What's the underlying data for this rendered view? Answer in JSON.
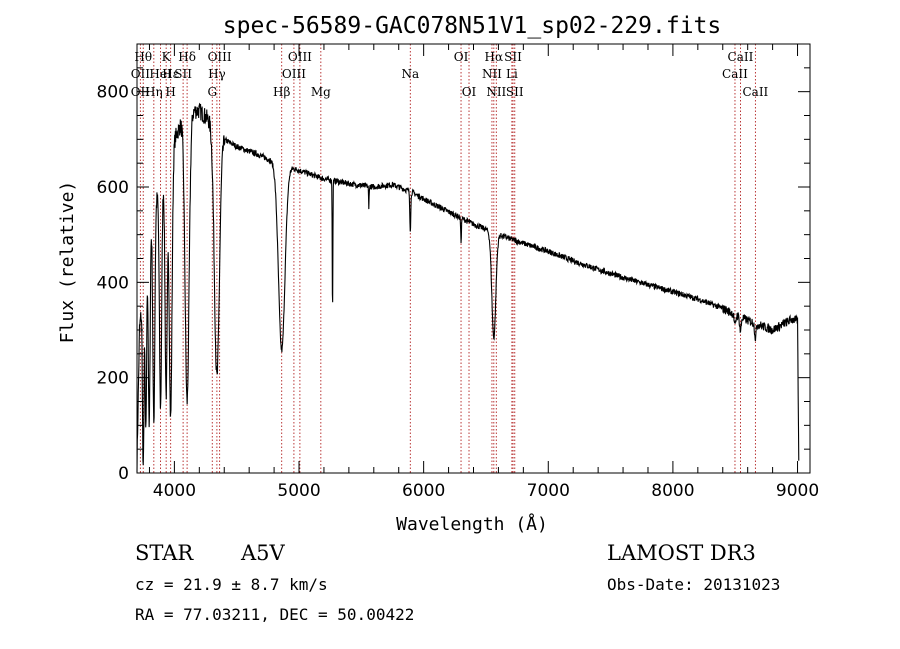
{
  "chart_data": {
    "type": "line",
    "title": "spec-56589-GAC078N51V1_sp02-229.fits",
    "xlabel": "Wavelength (Å)",
    "ylabel": "Flux (relative)",
    "xlim": [
      3700,
      9100
    ],
    "ylim": [
      0,
      900
    ],
    "x_ticks": [
      4000,
      5000,
      6000,
      7000,
      8000,
      9000
    ],
    "x_tick_labels": [
      "4000",
      "5000",
      "6000",
      "7000",
      "8000",
      "9000"
    ],
    "y_ticks": [
      0,
      200,
      400,
      600,
      800
    ],
    "y_tick_labels": [
      "0",
      "200",
      "400",
      "600",
      "800"
    ],
    "x_minor_step": 200,
    "y_minor_step": 50,
    "grid": false,
    "line_color": "#000000",
    "marker_color": "#b22222",
    "continuum": [
      [
        3700,
        20
      ],
      [
        3720,
        300
      ],
      [
        3800,
        520
      ],
      [
        3900,
        620
      ],
      [
        4000,
        700
      ],
      [
        4100,
        760
      ],
      [
        4200,
        760
      ],
      [
        4300,
        735
      ],
      [
        4400,
        700
      ],
      [
        4500,
        685
      ],
      [
        4600,
        675
      ],
      [
        4700,
        665
      ],
      [
        4800,
        652
      ],
      [
        5000,
        635
      ],
      [
        5200,
        617
      ],
      [
        5400,
        607
      ],
      [
        5600,
        600
      ],
      [
        5750,
        605
      ],
      [
        5900,
        590
      ],
      [
        6000,
        575
      ],
      [
        6200,
        548
      ],
      [
        6400,
        522
      ],
      [
        6600,
        500
      ],
      [
        6800,
        482
      ],
      [
        7000,
        465
      ],
      [
        7200,
        445
      ],
      [
        7400,
        427
      ],
      [
        7600,
        410
      ],
      [
        7800,
        395
      ],
      [
        8000,
        380
      ],
      [
        8200,
        365
      ],
      [
        8400,
        345
      ],
      [
        8600,
        320
      ],
      [
        8800,
        300
      ],
      [
        8950,
        322
      ],
      [
        9000,
        320
      ],
      [
        9010,
        20
      ]
    ],
    "absorption_lines": [
      {
        "center": 3750,
        "depth": 380,
        "width": 6
      },
      {
        "center": 3771,
        "depth": 360,
        "width": 6
      },
      {
        "center": 3798,
        "depth": 420,
        "width": 7
      },
      {
        "center": 3835,
        "depth": 450,
        "width": 8
      },
      {
        "center": 3889,
        "depth": 470,
        "width": 9
      },
      {
        "center": 3934,
        "depth": 480,
        "width": 9
      },
      {
        "center": 3970,
        "depth": 560,
        "width": 11
      },
      {
        "center": 4102,
        "depth": 610,
        "width": 16
      },
      {
        "center": 4341,
        "depth": 520,
        "width": 20
      },
      {
        "center": 4861,
        "depth": 390,
        "width": 26
      },
      {
        "center": 5269,
        "depth": 280,
        "width": 2.5
      },
      {
        "center": 5560,
        "depth": 50,
        "width": 2
      },
      {
        "center": 5893,
        "depth": 80,
        "width": 4
      },
      {
        "center": 6300,
        "depth": 50,
        "width": 3
      },
      {
        "center": 6563,
        "depth": 220,
        "width": 16
      },
      {
        "center": 8498,
        "depth": 25,
        "width": 6
      },
      {
        "center": 8542,
        "depth": 30,
        "width": 6
      },
      {
        "center": 8662,
        "depth": 30,
        "width": 6
      }
    ],
    "noise_amplitude": 12,
    "line_markers": [
      {
        "wavelength": 3750,
        "label": "Hθ",
        "row": 1
      },
      {
        "wavelength": 3727,
        "label": "OII",
        "row": 2
      },
      {
        "wavelength": 3727,
        "label": "OII",
        "row": 3
      },
      {
        "wavelength": 3835,
        "label": "Hη",
        "row": 3
      },
      {
        "wavelength": 3889,
        "label": "HeI",
        "row": 2
      },
      {
        "wavelength": 3934,
        "label": "K",
        "row": 1
      },
      {
        "wavelength": 3970,
        "label": "H",
        "row": 3
      },
      {
        "wavelength": 3970,
        "label": "Hε",
        "row": 2
      },
      {
        "wavelength": 4070,
        "label": "SII",
        "row": 2
      },
      {
        "wavelength": 4102,
        "label": "Hδ",
        "row": 1
      },
      {
        "wavelength": 4304,
        "label": "G",
        "row": 3
      },
      {
        "wavelength": 4341,
        "label": "Hγ",
        "row": 2
      },
      {
        "wavelength": 4363,
        "label": "OIII",
        "row": 1
      },
      {
        "wavelength": 4861,
        "label": "Hβ",
        "row": 3
      },
      {
        "wavelength": 4959,
        "label": "OIII",
        "row": 2
      },
      {
        "wavelength": 5007,
        "label": "OIII",
        "row": 1
      },
      {
        "wavelength": 5175,
        "label": "Mg",
        "row": 3
      },
      {
        "wavelength": 5893,
        "label": "Na",
        "row": 2
      },
      {
        "wavelength": 6300,
        "label": "OI",
        "row": 1
      },
      {
        "wavelength": 6364,
        "label": "OI",
        "row": 3
      },
      {
        "wavelength": 6548,
        "label": "NII",
        "row": 2
      },
      {
        "wavelength": 6563,
        "label": "Hα",
        "row": 1
      },
      {
        "wavelength": 6583,
        "label": "NII",
        "row": 3
      },
      {
        "wavelength": 6708,
        "label": "Li",
        "row": 2
      },
      {
        "wavelength": 6717,
        "label": "SII",
        "row": 1
      },
      {
        "wavelength": 6731,
        "label": "SII",
        "row": 3
      },
      {
        "wavelength": 8498,
        "label": "CaII",
        "row": 2
      },
      {
        "wavelength": 8542,
        "label": "CaII",
        "row": 1
      },
      {
        "wavelength": 8662,
        "label": "CaII",
        "row": 3
      }
    ]
  },
  "info": {
    "object_class": "STAR",
    "subclass": "A5V",
    "survey": "LAMOST DR3",
    "redshift_text": "cz =  21.9 ± 8.7 km/s",
    "obs_date_text": "Obs-Date: 20131023",
    "coords_text": "RA =  77.03211, DEC =  50.00422"
  }
}
